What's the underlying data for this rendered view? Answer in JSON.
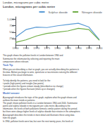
{
  "chart_data": {
    "type": "line",
    "title": "London, micrograms per cubic metre",
    "x": [
      1960,
      1965,
      1970,
      1975,
      1980,
      1985,
      1990,
      1995,
      2000
    ],
    "series": [
      {
        "name": "Sulphur dioxide",
        "color": "#5b9bd5",
        "values": [
          300,
          600,
          700,
          680,
          750,
          800,
          850,
          700,
          200
        ]
      },
      {
        "name": "Nitrogen dioxide",
        "color": "#70ad47",
        "values": [
          100,
          200,
          350,
          450,
          500,
          550,
          650,
          600,
          180
        ]
      }
    ],
    "xlim": [
      1960,
      2000
    ],
    "xticks": [
      1960,
      1965,
      1970,
      1975,
      1980,
      1985,
      1990,
      1995,
      2000
    ],
    "ylim": [
      0,
      1100
    ],
    "yticks": [
      250,
      500,
      750,
      {
        "value": 1000,
        "label": "1,000"
      }
    ],
    "grid": false,
    "legend": "upper right",
    "annotations": [
      {
        "text": "London, micrograms per cubic metre",
        "color": "#333333"
      },
      {
        "text": "This graph shows the pollution levels in London between 1960 and\nSummarise the information by selecting and reporting the main\ncomparisons where relevant.",
        "color": "#333333"
      },
      {
        "text": "Task Tip",
        "color": "#4472c4"
      },
      {
        "text": "When you are describing a chart or graph, you are actually describing the patterns in\nthe data. Before you begin to write, spend one or two minutes noticing the different\nfeatures of this visual information.\n\nTo help identify the patterns, you need to look for the:\n• peaks (high points) and troughs (low points)\n• periods when the figures remain steady (described as no change)\n• periods when the figures fluctuate (shots up or changes)",
        "color": "#333333"
      },
      {
        "text": "Model answer",
        "color": "#4472c4"
      },
      {
        "text": "A paragraph introduces the topic of the graph, explains what the graph shows and\noutlines the main trends or patterns.\nThe graph shows pollution levels in a London between 1960 and 2000. Summarise\npoints and sulphur dioxide in micrograms per cubic metre. According to the\ninformation, the levels of both pollutants formed a similar pattern during this period,\nbut there were always higher levels of sulphur dioxide than nitrates in the atmosphere.",
        "color": "#333333"
      },
      {
        "text": "A paragraph describes the trends in more detail and illustrates these using data\nfrom the graph.\nIn 1960, pollution levels were low, but over the next twenty years, the levels of",
        "color": "#333333"
      }
    ]
  }
}
